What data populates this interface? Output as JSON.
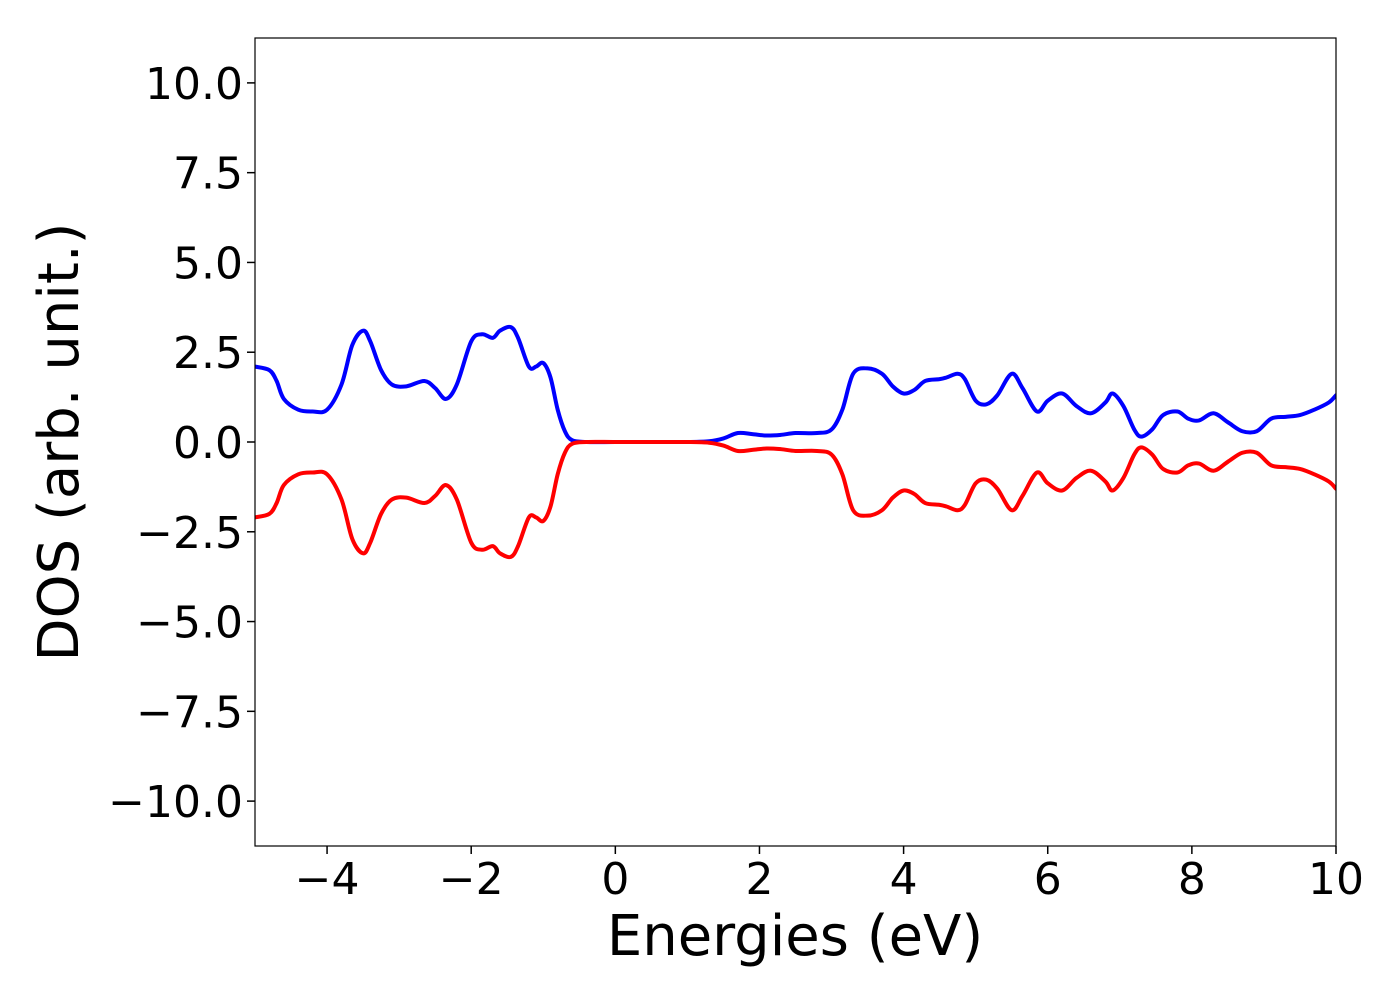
{
  "chart_data": {
    "type": "line",
    "title": "",
    "xlabel": "Energies (eV)",
    "ylabel": "DOS (arb. unit.)",
    "xlim": [
      -5,
      10
    ],
    "ylim": [
      -11.25,
      11.25
    ],
    "xticks": [
      -4,
      -2,
      0,
      2,
      4,
      6,
      8,
      10
    ],
    "xtick_labels": [
      "−4",
      "−2",
      "0",
      "2",
      "4",
      "6",
      "8",
      "10"
    ],
    "yticks": [
      10.0,
      7.5,
      5.0,
      2.5,
      0.0,
      -2.5,
      -5.0,
      -7.5,
      -10.0
    ],
    "ytick_labels": [
      "10.0",
      "7.5",
      "5.0",
      "2.5",
      "0.0",
      "−2.5",
      "−5.0",
      "−7.5",
      "−10.0"
    ],
    "grid": false,
    "legend": "none",
    "series": [
      {
        "color": "#0000ff",
        "x": [
          -5.0,
          -4.8,
          -4.7,
          -4.6,
          -4.4,
          -4.2,
          -4.0,
          -3.8,
          -3.65,
          -3.5,
          -3.4,
          -3.25,
          -3.1,
          -2.9,
          -2.65,
          -2.5,
          -2.35,
          -2.2,
          -2.0,
          -1.85,
          -1.7,
          -1.6,
          -1.45,
          -1.35,
          -1.2,
          -1.1,
          -1.0,
          -0.9,
          -0.8,
          -0.7,
          -0.6,
          -0.4,
          0.0,
          0.5,
          1.0,
          1.3,
          1.5,
          1.7,
          1.9,
          2.1,
          2.3,
          2.5,
          2.8,
          3.0,
          3.15,
          3.3,
          3.5,
          3.7,
          3.85,
          4.0,
          4.15,
          4.3,
          4.5,
          4.6,
          4.75,
          4.85,
          5.0,
          5.15,
          5.3,
          5.5,
          5.65,
          5.85,
          6.0,
          6.2,
          6.4,
          6.6,
          6.8,
          6.9,
          7.05,
          7.2,
          7.3,
          7.45,
          7.6,
          7.8,
          7.95,
          8.1,
          8.3,
          8.5,
          8.7,
          8.9,
          9.1,
          9.3,
          9.5,
          9.7,
          9.9,
          10.0
        ],
        "y": [
          2.1,
          2.0,
          1.7,
          1.2,
          0.9,
          0.85,
          0.9,
          1.6,
          2.7,
          3.1,
          2.8,
          2.0,
          1.6,
          1.55,
          1.7,
          1.5,
          1.2,
          1.6,
          2.8,
          3.0,
          2.9,
          3.1,
          3.2,
          2.9,
          2.1,
          2.1,
          2.2,
          1.8,
          0.9,
          0.3,
          0.05,
          0.0,
          0.0,
          0.0,
          0.0,
          0.02,
          0.1,
          0.25,
          0.22,
          0.18,
          0.2,
          0.25,
          0.25,
          0.35,
          0.9,
          1.9,
          2.05,
          1.9,
          1.55,
          1.35,
          1.45,
          1.7,
          1.75,
          1.8,
          1.9,
          1.75,
          1.15,
          1.05,
          1.3,
          1.9,
          1.5,
          0.85,
          1.15,
          1.35,
          1.0,
          0.8,
          1.1,
          1.35,
          1.0,
          0.35,
          0.15,
          0.35,
          0.75,
          0.85,
          0.65,
          0.6,
          0.8,
          0.55,
          0.3,
          0.3,
          0.65,
          0.7,
          0.75,
          0.9,
          1.1,
          1.3
        ]
      },
      {
        "color": "#ff0000",
        "x": [
          -5.0,
          -4.8,
          -4.7,
          -4.6,
          -4.4,
          -4.2,
          -4.0,
          -3.8,
          -3.65,
          -3.5,
          -3.4,
          -3.25,
          -3.1,
          -2.9,
          -2.65,
          -2.5,
          -2.35,
          -2.2,
          -2.0,
          -1.85,
          -1.7,
          -1.6,
          -1.45,
          -1.35,
          -1.2,
          -1.1,
          -1.0,
          -0.9,
          -0.8,
          -0.7,
          -0.6,
          -0.4,
          0.0,
          0.5,
          1.0,
          1.3,
          1.5,
          1.7,
          1.9,
          2.1,
          2.3,
          2.5,
          2.8,
          3.0,
          3.15,
          3.3,
          3.5,
          3.7,
          3.85,
          4.0,
          4.15,
          4.3,
          4.5,
          4.6,
          4.75,
          4.85,
          5.0,
          5.15,
          5.3,
          5.5,
          5.65,
          5.85,
          6.0,
          6.2,
          6.4,
          6.6,
          6.8,
          6.9,
          7.05,
          7.2,
          7.3,
          7.45,
          7.6,
          7.8,
          7.95,
          8.1,
          8.3,
          8.5,
          8.7,
          8.9,
          9.1,
          9.3,
          9.5,
          9.7,
          9.9,
          10.0
        ],
        "y": [
          -2.1,
          -2.0,
          -1.7,
          -1.2,
          -0.9,
          -0.85,
          -0.9,
          -1.6,
          -2.7,
          -3.1,
          -2.8,
          -2.0,
          -1.6,
          -1.55,
          -1.7,
          -1.5,
          -1.2,
          -1.6,
          -2.8,
          -3.0,
          -2.9,
          -3.1,
          -3.2,
          -2.9,
          -2.1,
          -2.1,
          -2.2,
          -1.8,
          -0.9,
          -0.3,
          -0.05,
          0.0,
          0.0,
          0.0,
          0.0,
          -0.02,
          -0.1,
          -0.25,
          -0.22,
          -0.18,
          -0.2,
          -0.25,
          -0.25,
          -0.35,
          -0.9,
          -1.9,
          -2.05,
          -1.9,
          -1.55,
          -1.35,
          -1.45,
          -1.7,
          -1.75,
          -1.8,
          -1.9,
          -1.75,
          -1.15,
          -1.05,
          -1.3,
          -1.9,
          -1.5,
          -0.85,
          -1.15,
          -1.35,
          -1.0,
          -0.8,
          -1.1,
          -1.35,
          -1.0,
          -0.35,
          -0.15,
          -0.35,
          -0.75,
          -0.85,
          -0.65,
          -0.6,
          -0.8,
          -0.55,
          -0.3,
          -0.3,
          -0.65,
          -0.7,
          -0.75,
          -0.9,
          -1.1,
          -1.3
        ]
      }
    ]
  }
}
